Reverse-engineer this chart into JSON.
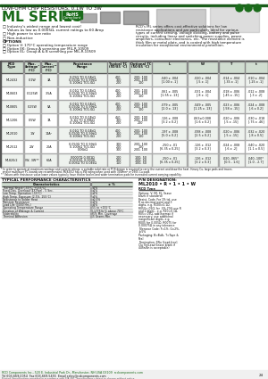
{
  "title_line": "LOW-OHM CHIP RESISTORS, 0.1W TO 3W",
  "series_name": "ML SERIES",
  "bg_color": "#ffffff",
  "top_bar_color": "#1a5c1a",
  "green_text": "#1a6b1a",
  "table_header_bg": "#d0ddd0",
  "table_row_bg1": "#ffffff",
  "table_row_bg2": "#eef2ee",
  "features": [
    "□ Industry's widest range and lowest cost!",
    "    Values as low as 0.0005Ω, current ratings to 60 Amp",
    "□ High power to size ratio",
    "□ Non-inductive"
  ],
  "options_title": "OPTIONS",
  "options": [
    "□ Option V: 170°C operating temperature range",
    "□ Option EK: Group A screening per MIL-R-10509",
    "□ Option EL: Group A & B screening per MIL-R-10509"
  ],
  "rcd_desc_lines": [
    "RCD's ML series offers cost-effective solutions for low",
    "resistance applications and are particularly ideal for various",
    "types of current sensing, voltage dividing, battery and pulse",
    "circuits, including linear and switching power supplies, power",
    "amplifiers, consumer electronics, etc. The resistance element is",
    "thick film or metal plate, and is coated with high temperature",
    "insulation for exceptional environmental protection."
  ],
  "table_headers": [
    "RCD\nType",
    "Max.\nWattage¹\n(°C)",
    "Max.\nCurrent¹²\n(°C)",
    "Resistance\nRange",
    "Typical TC\n(50/85 °C)",
    "Optional TC\n(50/85 °C)",
    "L",
    "W",
    "T",
    "t"
  ],
  "table_data": [
    [
      "ML2432",
      "0.1W",
      "3A",
      "0.05Ω TO 0.04kΩ\n0.050Ω TO 0.99kΩ\n0.100kΩ TO1.0Ω",
      "400\n300\n200",
      "200, 100\n200, 100\n100",
      ".040 x .004\n[1.00 x .1]",
      ".020 x .004\n[.5 x .1]",
      ".014 x .004\n[.35 x .1]",
      ".010 x .004\n[.25 x .1]"
    ],
    [
      "ML0603",
      "0.125W",
      "3.5A",
      "0.01Ω TO 0.04kΩ\n0.050Ω TO 0.99kΩ\n0.100kΩ TO1.0Ω",
      "400\n300\n200",
      "200, 100\n200, 100\n100",
      ".061 x .005\n[1.55 x .13]",
      ".031 x .004\n[.8 x .1]",
      ".018 x .006\n[.45 x .15]",
      ".012 x .008\n[.3 x .2]"
    ],
    [
      "ML0805",
      "0.25W",
      "5A",
      "0.01Ω TO 0.04kΩ\n0.050Ω TO 0.99kΩ\n0.100kΩ TO1.0Ω",
      "400\n300\n200",
      "200, 100\n200, 100\n100",
      ".079 x .005\n[2.0 x .13]",
      ".049 x .005\n[1.25 x .13]",
      ".023 x .006\n[.58 x .15]",
      ".024 x .008\n[.6 x 0.2]"
    ],
    [
      "ML1206",
      "0.5W",
      "7A",
      "0.01Ω TO 0.04kΩ\n0.1Ω TO 0.99kΩ\n0.100kΩ TO1.0Ω",
      "450\n300\n200",
      "200, 100\n200, 100\n200",
      ".126 x .008\n[3.2 x 0.2]",
      ".063±0.008\n[1.6 x 0.2]",
      ".020 x .006\n[.5 x .15]",
      ".030 x .018\n[.75 x .46]"
    ],
    [
      "ML2010",
      "1W",
      "14A²",
      "0.01Ω TO 0.04kΩ\n0.050Ω TO 0.99kΩ\n0.100kΩ TO1.0Ω",
      "400\n300\n200",
      "200, 100\n200, 100\n100",
      ".197 x .008\n[5.0 x 0.2]",
      ".098 x .008\n[2.5 x 0.2]",
      ".020 x .006\n[.5 x .15]",
      ".032 x .020\n[.8 x 0.5]"
    ],
    [
      "ML2512",
      "2W",
      "20A",
      "0.050Ω TO 0.99kΩ\n0.100kΩ TO1.0Ω\n0.06kΩ",
      "300\n200\n300",
      "200, 100\n100\n200, 100",
      ".250 x .01\n[6.35 x 0.25]",
      ".126 x .012\n[3.2 x 0.3]",
      ".024 x .008\n[.6 x .2]",
      ".040 x .020\n[1.1 x 0.5]"
    ],
    [
      "ML820/2",
      "2W, 3W**",
      "60A",
      "0.0007Ω-0.001Ω\n0.00150, 0.003Ω\n0.005Ω TO 0.04kΩ",
      "200\n300\n150",
      "100, 50\n100, 50\n100, 50",
      ".250 x .01\n[6.35 x 0.25]",
      ".126 x .012\n[3.2 x 0.3]",
      ".020-.065*\n[0.5 - 1.6]",
      ".040-.100*\n[1.0 - 2.7]"
    ]
  ],
  "footnotes": [
    "* In order to operate at maximum wattage and current ratings, a suitable substrate or PCB design is required to carry the current and draw the heat. Heavy Cu, large pads and traces,",
    "  and/or multilayer PC boards are recommended. ML820/2 has a 3W rating when used with 300mm² or 0305 Cu pads.",
    "** Values with resistance value lower values typically have thicker bodies and wider termination pads for increased current carrying capability."
  ],
  "bottom_left_title": "TYPICAL PERFORMANCE CHARACTERISTICS",
  "char_header": [
    "Characteristics",
    "± %"
  ],
  "char_rows": [
    [
      "Thermal Shock (-55°C, +155°C)",
      "±1%"
    ],
    [
      "Fixed Diss. Overload (4X Pwr) - 5 Sec.",
      "±1%"
    ],
    [
      "Low Temp. Operation (-55°C)",
      "±1%"
    ],
    [
      "High Temp. Exposure (2.5%, 155°C)",
      "±1%"
    ],
    [
      "Resistance to Solder Heat",
      "±0.5%"
    ],
    [
      "Moisture Resistance",
      "±1%"
    ],
    [
      "Load Life (3000 Hrs.)",
      "±2%"
    ],
    [
      "Operating Temperature Range",
      "-55 to +155°C"
    ],
    [
      "Deration of Wattage & Current",
      "0.1775%/°C above 70°C"
    ],
    [
      "Solderability",
      "95% Min. Coverage"
    ],
    [
      "Terminal Adhesion",
      "15 Grams Min."
    ]
  ],
  "pn_title": "P/N DESIGNATION:",
  "pn_example": "ML2010 • R • 1 • 1 • W",
  "pn_rcd_type": "RCD Type",
  "pn_fields": [
    {
      "label": "Options: V, EK, EL (leave blank if standard)",
      "key": "options"
    },
    {
      "label": "Resist. Code: For 1% tol. use R as decimal point and 3 digits, e.g. R100=0.1Ω, R050=.05Ω; for .5%-70% use R and 2 digits - e.g. R10=0.1Ω, R05=.05Ω; add exempt if necessary; use additional insignificant digits, e.g. R005 for 0.005Ω, R0075 for 0.00075Ω in any tolerance",
      "key": "resist"
    },
    {
      "label": "Tolerance Code: F=1%, G=2%, J=5%",
      "key": "tol"
    },
    {
      "label": "Packaging: B=Bulk, T=Tape & Reel",
      "key": "pkg"
    },
    {
      "label": "Termination: SNu (Lead-free); Clu Tin/Lead (leave blank if 44Sn/4n is acceptable)",
      "key": "term"
    }
  ],
  "footer_company": "RCD Components Inc., 520 E. Industrial Park Dr., Manchester, NH USA 03109",
  "footer_web": "rcdcomponents.com",
  "footer_tel": "Tel 603-669-0054  Fax 603-669-5455  Email sales@rcdcomponents.com",
  "footer_note": "Printed: Specifications provided in accordance with EIA-481. Specifications subject to change without notice.",
  "footer_page": "24"
}
